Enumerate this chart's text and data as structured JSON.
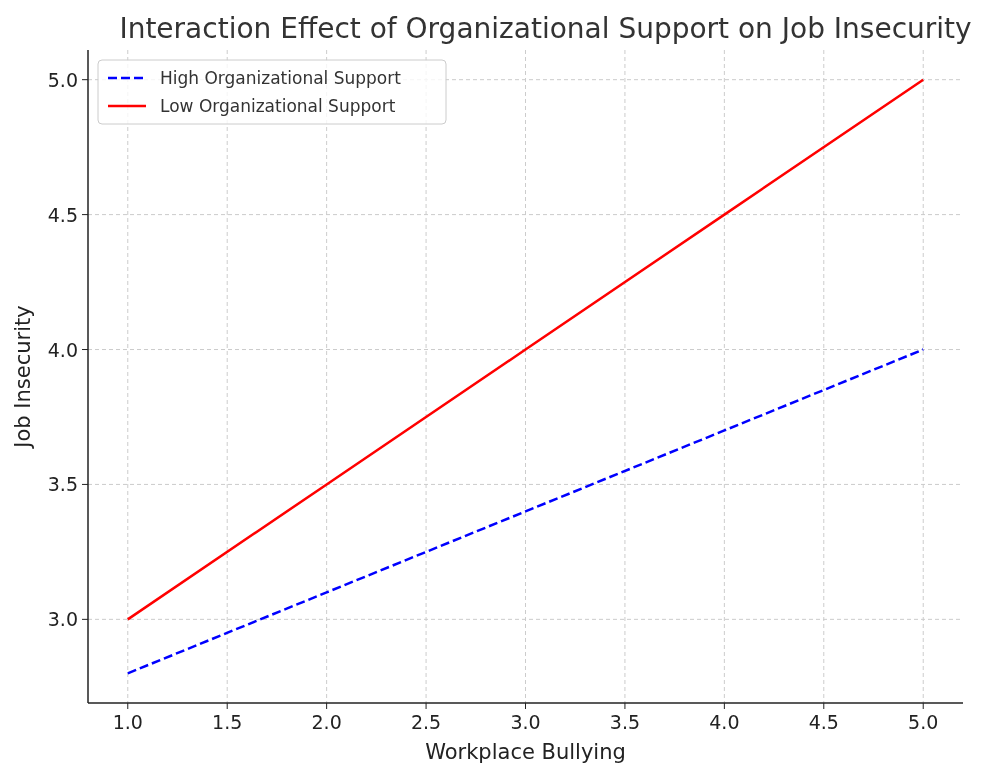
{
  "chart_data": {
    "type": "line",
    "title": "Interaction Effect of Organizational Support on Job Insecurity",
    "xlabel": "Workplace Bullying",
    "ylabel": "Job Insecurity",
    "x": [
      1,
      2,
      3,
      4,
      5
    ],
    "series": [
      {
        "name": "High Organizational Support",
        "color": "#0000ff",
        "values": [
          2.8,
          3.1,
          3.4,
          3.7,
          4.0
        ],
        "line_style": "dashed"
      },
      {
        "name": "Low Organizational Support",
        "color": "#ff0000",
        "values": [
          3.0,
          3.5,
          4.0,
          4.5,
          5.0
        ],
        "line_style": "solid"
      }
    ],
    "xlim": [
      0.8,
      5.2
    ],
    "ylim": [
      2.69,
      5.11
    ],
    "xticks": [
      {
        "value": 1,
        "label": "1.0"
      },
      {
        "value": 1.5,
        "label": "1.5"
      },
      {
        "value": 2,
        "label": "2.0"
      },
      {
        "value": 2.5,
        "label": "2.5"
      },
      {
        "value": 3,
        "label": "3.0"
      },
      {
        "value": 3.5,
        "label": "3.5"
      },
      {
        "value": 4,
        "label": "4.0"
      },
      {
        "value": 4.5,
        "label": "4.5"
      },
      {
        "value": 5,
        "label": "5.0"
      }
    ],
    "yticks": [
      {
        "value": 3,
        "label": "3.0"
      },
      {
        "value": 3.5,
        "label": "3.5"
      },
      {
        "value": 4,
        "label": "4.0"
      },
      {
        "value": 4.5,
        "label": "4.5"
      },
      {
        "value": 5,
        "label": "5.0"
      }
    ],
    "grid": true,
    "legend": "top left",
    "marker": "none"
  }
}
